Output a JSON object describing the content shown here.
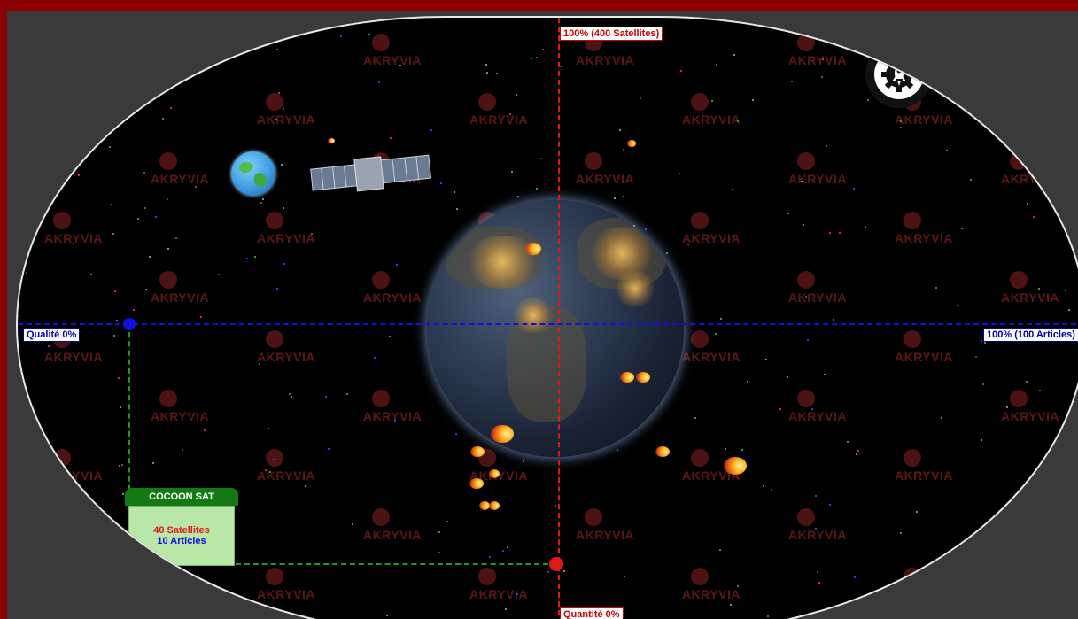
{
  "scene": {
    "watermark": "AKRYVIA",
    "game_panel": {
      "title": "COCOON SAT",
      "satellites_text": "40 Satellites",
      "articles_text": "10 Articles"
    },
    "axes": {
      "top_label": "100% (400 Satellites)",
      "bottom_label": "Quantité 0%",
      "left_label": "Qualité 0%",
      "right_label": "100% (100 Articles)"
    },
    "icons": {
      "settings": "rocket-gear-icon",
      "planet": "globe-icon",
      "satellite": "satellite-icon",
      "earth": "earth-icon",
      "meteor": "meteor-icon"
    },
    "colors": {
      "frame": "#8b0000",
      "quantity_axis": "#e01818",
      "quality_axis": "#1010e0",
      "cocoon_marker": "#1f9a1f",
      "cocoon_header": "#137a13",
      "cocoon_body": "#b9e7a8"
    }
  }
}
